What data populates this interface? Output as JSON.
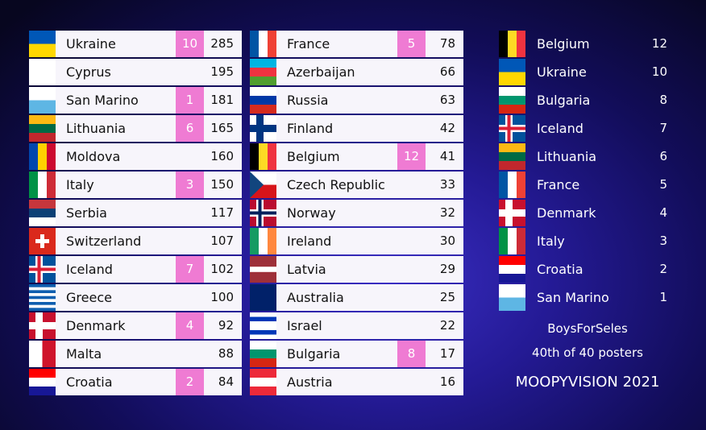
{
  "scoreboard": {
    "columns": [
      {
        "rows": [
          {
            "country": "Ukraine",
            "points": 10,
            "total": 285
          },
          {
            "country": "Cyprus",
            "total": 195
          },
          {
            "country": "San Marino",
            "points": 1,
            "total": 181
          },
          {
            "country": "Lithuania",
            "points": 6,
            "total": 165
          },
          {
            "country": "Moldova",
            "total": 160
          },
          {
            "country": "Italy",
            "points": 3,
            "total": 150
          },
          {
            "country": "Serbia",
            "total": 117
          },
          {
            "country": "Switzerland",
            "total": 107
          },
          {
            "country": "Iceland",
            "points": 7,
            "total": 102
          },
          {
            "country": "Greece",
            "total": 100
          },
          {
            "country": "Denmark",
            "points": 4,
            "total": 92
          },
          {
            "country": "Malta",
            "total": 88
          },
          {
            "country": "Croatia",
            "points": 2,
            "total": 84
          }
        ]
      },
      {
        "rows": [
          {
            "country": "France",
            "points": 5,
            "total": 78
          },
          {
            "country": "Azerbaijan",
            "total": 66
          },
          {
            "country": "Russia",
            "total": 63
          },
          {
            "country": "Finland",
            "total": 42
          },
          {
            "country": "Belgium",
            "points": 12,
            "total": 41
          },
          {
            "country": "Czech Republic",
            "total": 33
          },
          {
            "country": "Norway",
            "total": 32
          },
          {
            "country": "Ireland",
            "total": 30
          },
          {
            "country": "Latvia",
            "total": 29
          },
          {
            "country": "Australia",
            "total": 25
          },
          {
            "country": "Israel",
            "total": 22
          },
          {
            "country": "Bulgaria",
            "points": 8,
            "total": 17
          },
          {
            "country": "Austria",
            "total": 16
          }
        ]
      }
    ]
  },
  "votes": [
    {
      "country": "Belgium",
      "points": 12
    },
    {
      "country": "Ukraine",
      "points": 10
    },
    {
      "country": "Bulgaria",
      "points": 8
    },
    {
      "country": "Iceland",
      "points": 7
    },
    {
      "country": "Lithuania",
      "points": 6
    },
    {
      "country": "France",
      "points": 5
    },
    {
      "country": "Denmark",
      "points": 4
    },
    {
      "country": "Italy",
      "points": 3
    },
    {
      "country": "Croatia",
      "points": 2
    },
    {
      "country": "San Marino",
      "points": 1
    }
  ],
  "footer": {
    "voter": "BoysForSeles",
    "rank": "40th of 40 posters",
    "brand": "MOOPYVISION 2021"
  }
}
